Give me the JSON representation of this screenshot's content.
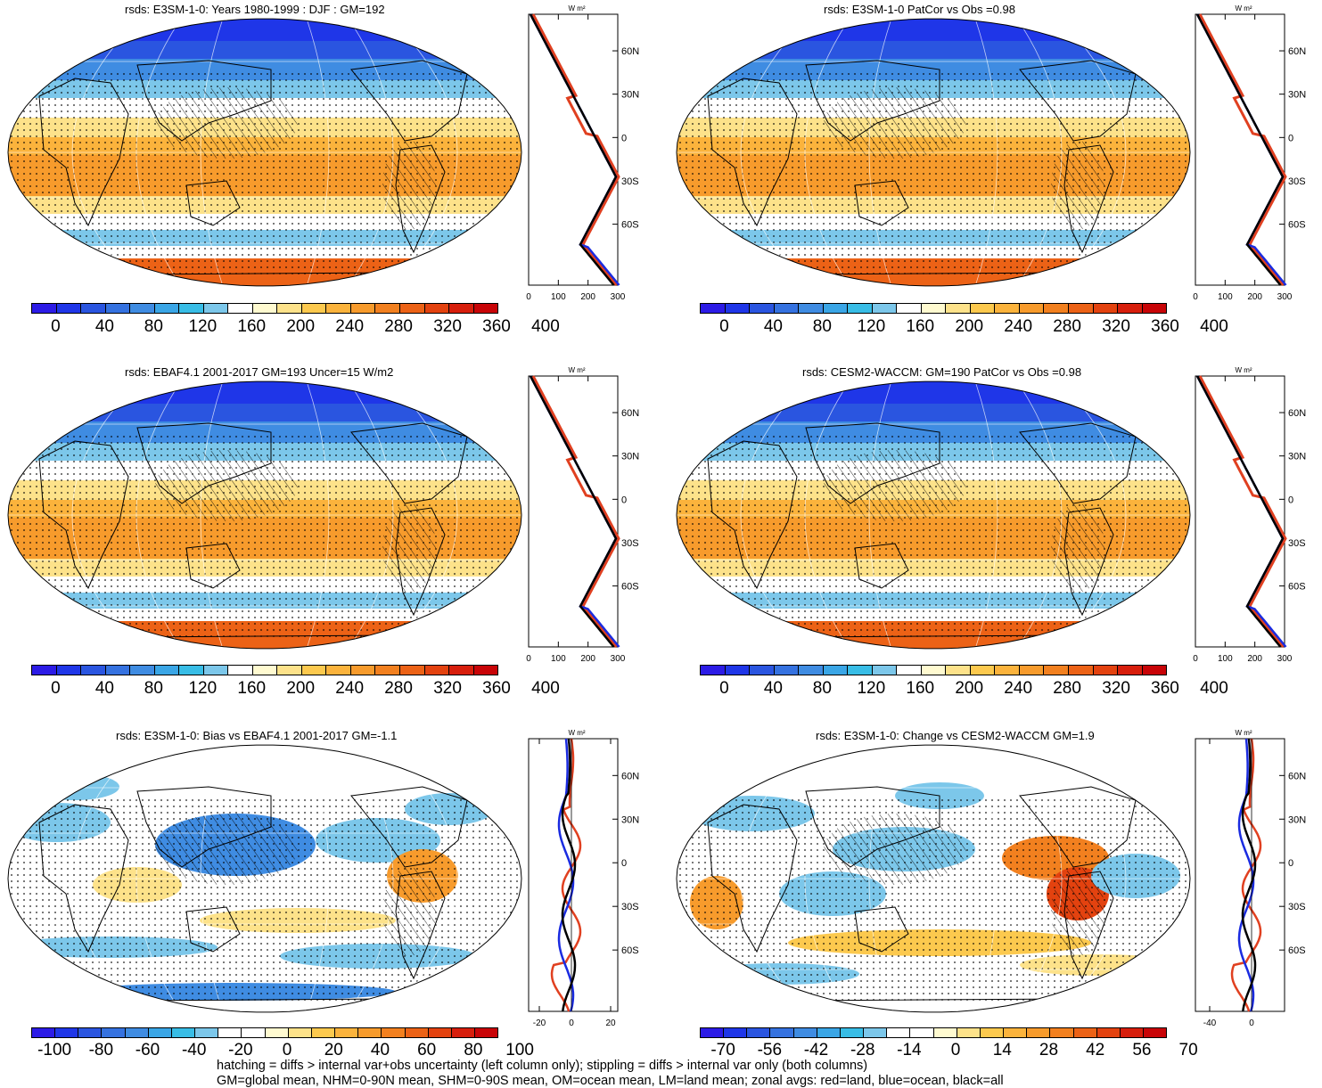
{
  "colors": {
    "abs_scale": [
      "#2c1be6",
      "#1f36e8",
      "#2a55e0",
      "#3572e0",
      "#3f8ce2",
      "#3aa6e6",
      "#38bde6",
      "#7cc7ea",
      "#ffffff",
      "#fffad0",
      "#fde28a",
      "#fcc94e",
      "#fbb33c",
      "#f79b2c",
      "#f2801f",
      "#ec6216",
      "#e3420f",
      "#d71e0c",
      "#c80407"
    ],
    "diff_scale": [
      "#2c1be6",
      "#1f36e8",
      "#2a55e0",
      "#3572e0",
      "#3f8ce2",
      "#3aa6e6",
      "#38bde6",
      "#7cc7ea",
      "#ffffff",
      "#ffffff",
      "#fffad0",
      "#fde28a",
      "#fcc94e",
      "#fbb33c",
      "#f79b2c",
      "#f2801f",
      "#ec6216",
      "#e3420f",
      "#d71e0c",
      "#c80407"
    ],
    "land": "#e04020",
    "ocean": "#1a2be0",
    "all": "#000000"
  },
  "panels": [
    {
      "title": "rsds: E3SM-1-0: Years 1980-1999 : DJF : GM=192",
      "type": "abs",
      "cbar_labels": [
        "0",
        "40",
        "80",
        "120",
        "160",
        "200",
        "240",
        "280",
        "320",
        "360",
        "400"
      ],
      "zonal": {
        "units": "W m²",
        "xticks": [
          "0",
          "100",
          "200",
          "300"
        ],
        "yticks": [
          "60N",
          "30N",
          "0",
          "30S",
          "60S"
        ]
      }
    },
    {
      "title": "rsds: E3SM-1-0 PatCor vs Obs =0.98",
      "type": "abs",
      "cbar_labels": [
        "0",
        "40",
        "80",
        "120",
        "160",
        "200",
        "240",
        "280",
        "320",
        "360",
        "400"
      ],
      "zonal": {
        "units": "W m²",
        "xticks": [
          "0",
          "100",
          "200",
          "300"
        ],
        "yticks": [
          "60N",
          "30N",
          "0",
          "30S",
          "60S"
        ]
      }
    },
    {
      "title": "rsds: EBAF4.1 2001-2017 GM=193 Uncer=15 W/m2",
      "type": "abs",
      "cbar_labels": [
        "0",
        "40",
        "80",
        "120",
        "160",
        "200",
        "240",
        "280",
        "320",
        "360",
        "400"
      ],
      "zonal": {
        "units": "W m²",
        "xticks": [
          "0",
          "100",
          "200",
          "300"
        ],
        "yticks": [
          "60N",
          "30N",
          "0",
          "30S",
          "60S"
        ]
      }
    },
    {
      "title": "rsds: CESM2-WACCM: GM=190 PatCor vs Obs =0.98",
      "type": "abs",
      "cbar_labels": [
        "0",
        "40",
        "80",
        "120",
        "160",
        "200",
        "240",
        "280",
        "320",
        "360",
        "400"
      ],
      "zonal": {
        "units": "W m²",
        "xticks": [
          "0",
          "100",
          "200",
          "300"
        ],
        "yticks": [
          "60N",
          "30N",
          "0",
          "30S",
          "60S"
        ]
      }
    },
    {
      "title": "rsds: E3SM-1-0: Bias vs EBAF4.1 2001-2017 GM=-1.1",
      "type": "diff",
      "cbar_labels": [
        "-100",
        "-80",
        "-60",
        "-40",
        "-20",
        "0",
        "20",
        "40",
        "60",
        "80",
        "100"
      ],
      "zonal": {
        "units": "W m²",
        "xticks": [
          "-20",
          "0",
          "20"
        ],
        "yticks": [
          "60N",
          "30N",
          "0",
          "30S",
          "60S"
        ]
      }
    },
    {
      "title": "rsds: E3SM-1-0: Change vs CESM2-WACCM GM=1.9",
      "type": "diff",
      "cbar_labels": [
        "-70",
        "-56",
        "-42",
        "-28",
        "-14",
        "0",
        "14",
        "28",
        "42",
        "56",
        "70"
      ],
      "zonal": {
        "units": "W m²",
        "xticks": [
          "-40",
          "0"
        ],
        "yticks": [
          "60N",
          "30N",
          "0",
          "30S",
          "60S"
        ]
      }
    }
  ],
  "footer": {
    "line1": "hatching = diffs > internal var+obs uncertainty (left column only); stippling = diffs > internal var only (both columns)",
    "line2": "GM=global mean, NHM=0-90N mean, SHM=0-90S mean, OM=ocean mean, LM=land mean; zonal avgs: red=land, blue=ocean, black=all"
  }
}
